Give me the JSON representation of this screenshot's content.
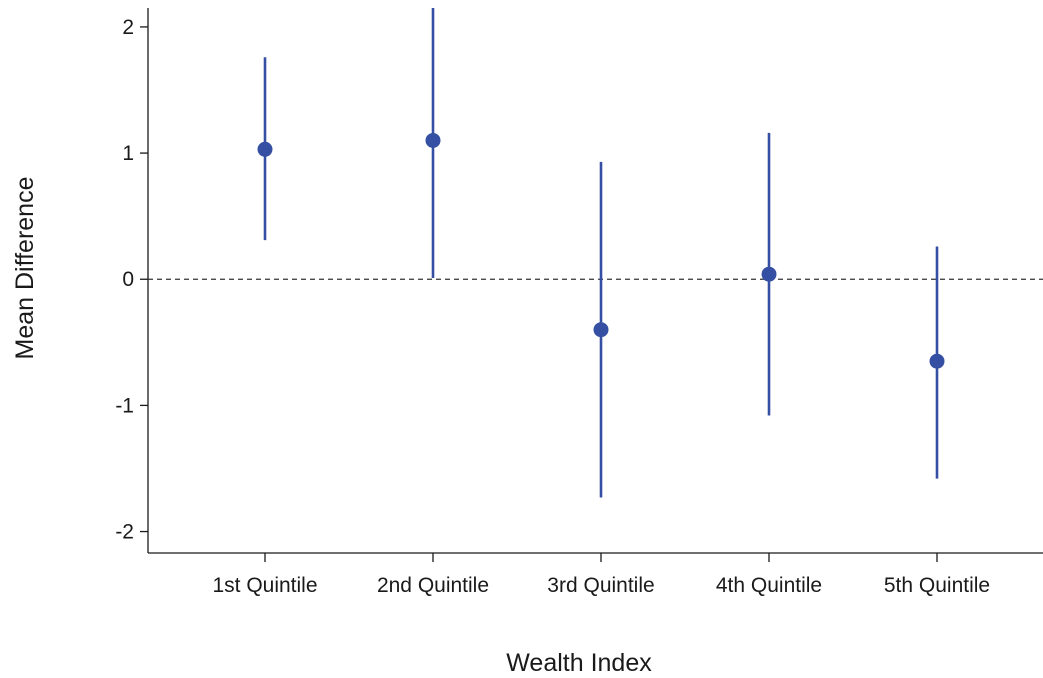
{
  "chart_data": {
    "type": "scatter",
    "title": "",
    "xlabel": "Wealth Index",
    "ylabel": "Mean Difference",
    "categories": [
      "1st Quintile",
      "2nd Quintile",
      "3rd Quintile",
      "4th Quintile",
      "5th Quintile"
    ],
    "series": [
      {
        "values": [
          1.03,
          1.1,
          -0.4,
          0.04,
          -0.65
        ],
        "ci_lower": [
          0.31,
          0.01,
          -1.73,
          -1.08,
          -1.58
        ],
        "ci_upper": [
          1.76,
          2.15,
          0.93,
          1.16,
          0.26
        ]
      }
    ],
    "yticks": [
      -2,
      -1,
      0,
      1,
      2
    ],
    "ytick_labels": [
      "-2",
      "-1",
      "0",
      "1",
      "2"
    ],
    "ylim": [
      -2.17,
      2.15
    ],
    "reference_line": {
      "y": 0,
      "style": "dashed"
    },
    "grid": false,
    "legend": "none",
    "colors": {
      "marker": "#3550a3",
      "error_bar": "#3550a3",
      "axis": "#1a1a1a",
      "reference_line": "#333333"
    }
  }
}
